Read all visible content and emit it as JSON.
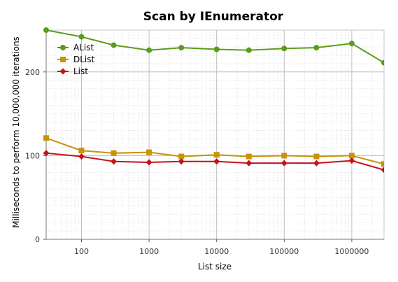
{
  "chart_data": {
    "type": "line",
    "title": "Scan by IEnumerator",
    "xlabel": "List size",
    "ylabel": "Milliseconds to perform 10,000,000 iterations",
    "xscale": "log",
    "xlim": [
      30,
      3000000
    ],
    "ylim": [
      0,
      250
    ],
    "xticks": [
      100,
      1000,
      10000,
      100000,
      1000000
    ],
    "xtick_labels": [
      "100",
      "1000",
      "10000",
      "100000",
      "1000000"
    ],
    "yticks": [
      0,
      100,
      200
    ],
    "ytick_labels": [
      "0",
      "100",
      "200"
    ],
    "grid": true,
    "legend_position": "top-left",
    "x": [
      30,
      100,
      300,
      1000,
      3000,
      10000,
      30000,
      100000,
      300000,
      1000000,
      3000000
    ],
    "series": [
      {
        "name": "AList",
        "color": "#5b9c1a",
        "marker": "circle",
        "values": [
          250,
          242,
          232,
          226,
          229,
          227,
          226,
          228,
          229,
          234,
          211
        ]
      },
      {
        "name": "DList",
        "color": "#c8920c",
        "marker": "square",
        "values": [
          121,
          106,
          103,
          104,
          99,
          101,
          99,
          100,
          99,
          100,
          90
        ]
      },
      {
        "name": "List",
        "color": "#c0141a",
        "marker": "diamond",
        "values": [
          103,
          99,
          93,
          92,
          93,
          93,
          91,
          91,
          91,
          94,
          83
        ]
      }
    ]
  }
}
